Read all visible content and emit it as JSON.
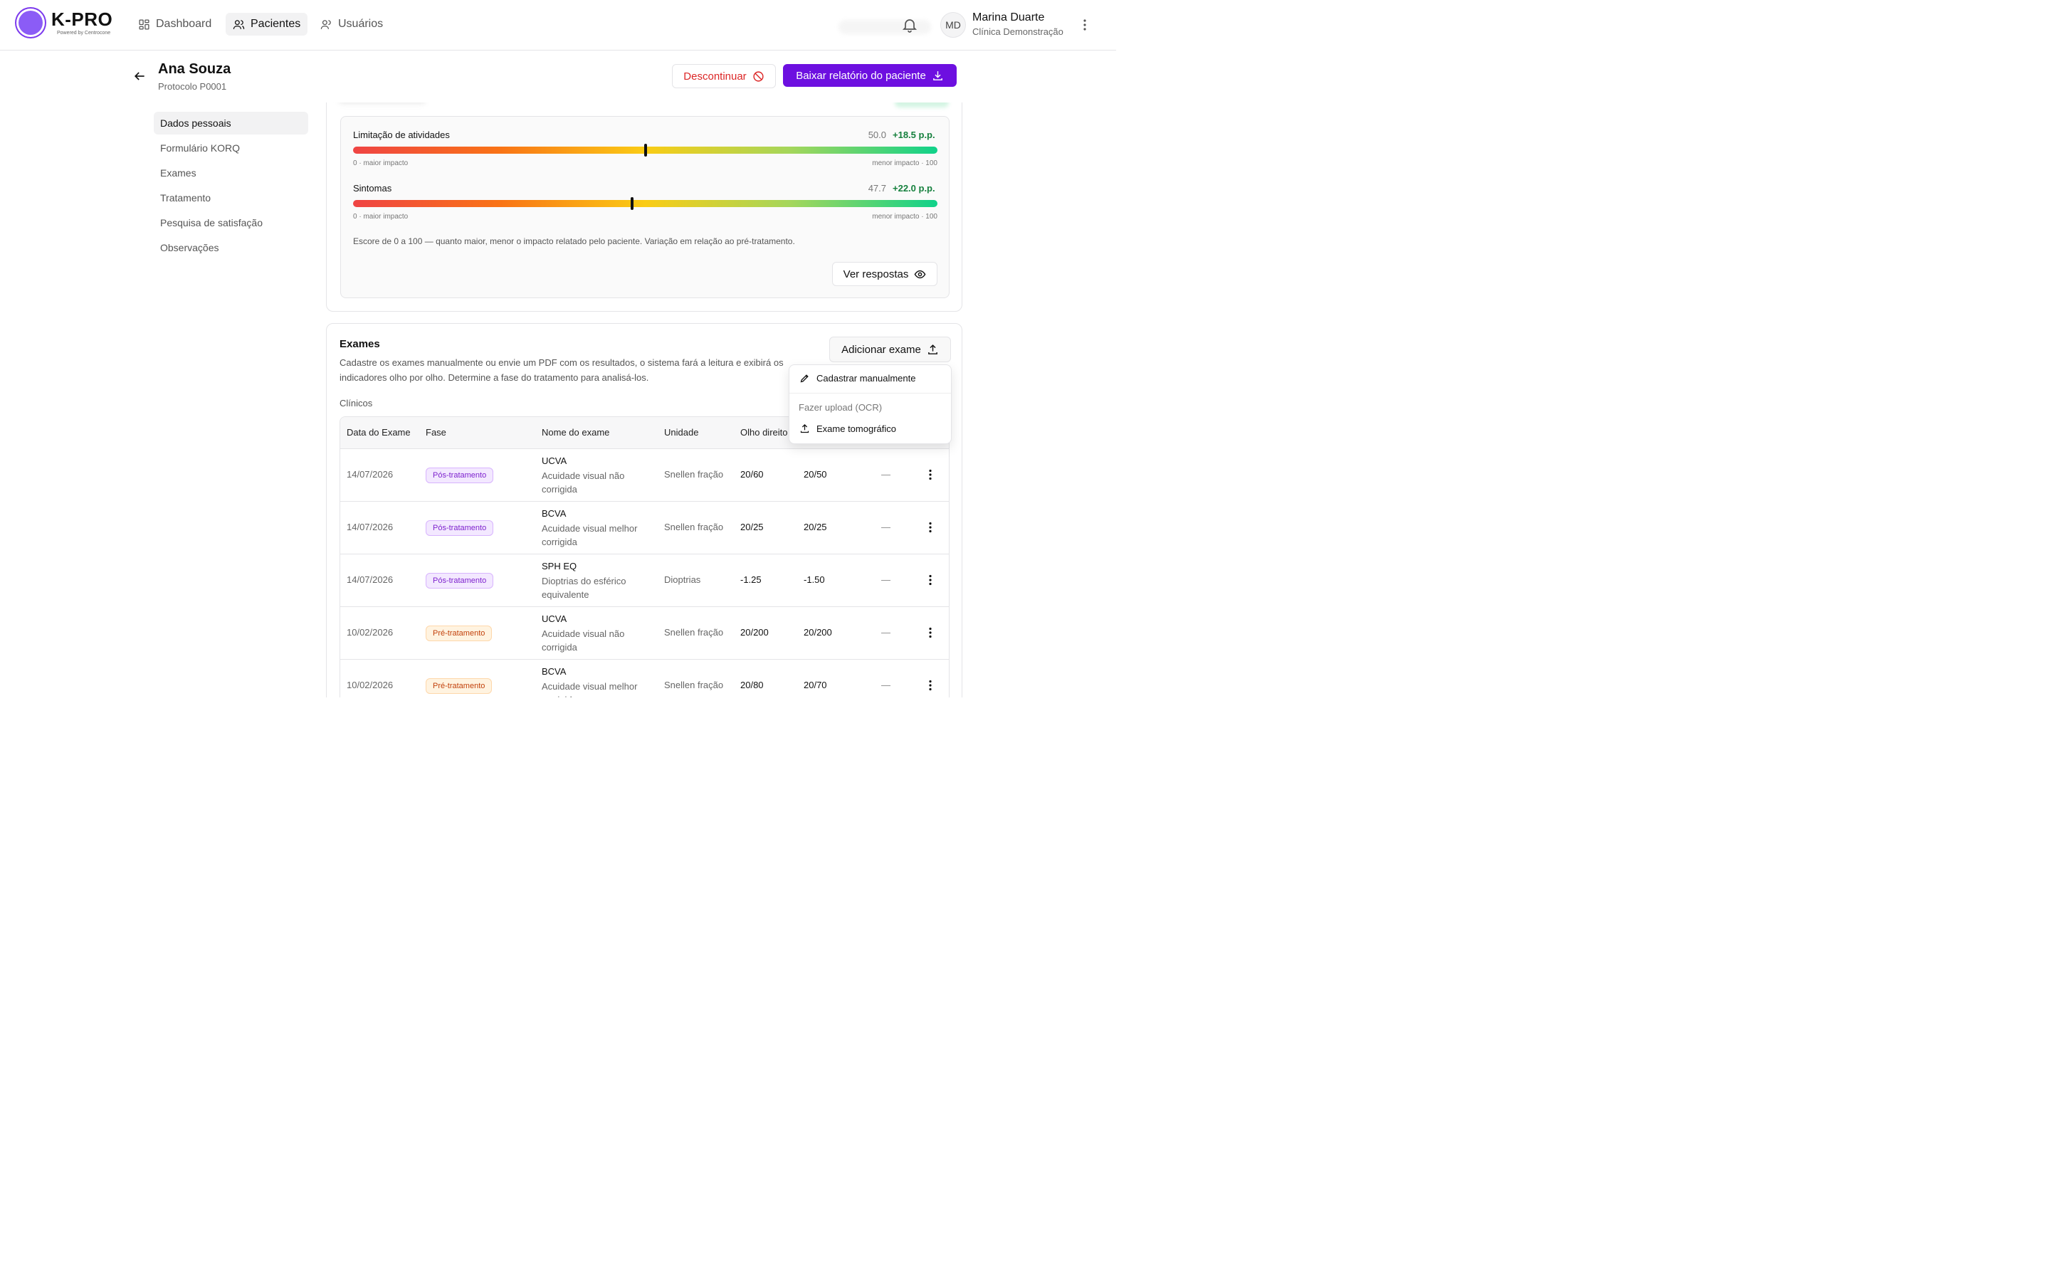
{
  "app": {
    "logo_text": "K-PRO",
    "logo_sub": "Powered by Centrocone"
  },
  "nav": {
    "items": [
      {
        "label": "Dashboard",
        "icon": "grid-icon",
        "active": false
      },
      {
        "label": "Pacientes",
        "icon": "users-icon",
        "active": true
      },
      {
        "label": "Usuários",
        "icon": "user-group-icon",
        "active": false
      }
    ]
  },
  "user": {
    "initials": "MD",
    "name": "Marina Duarte",
    "org": "Clínica Demonstração"
  },
  "patient": {
    "name": "Ana Souza",
    "protocol": "Protocolo P0001"
  },
  "actions": {
    "discontinue": "Descontinuar",
    "download_report": "Baixar relatório do paciente"
  },
  "sidenav": {
    "items": [
      {
        "label": "Dados pessoais",
        "active": true
      },
      {
        "label": "Formulário KORQ",
        "active": false
      },
      {
        "label": "Exames",
        "active": false
      },
      {
        "label": "Tratamento",
        "active": false
      },
      {
        "label": "Pesquisa de satisfação",
        "active": false
      },
      {
        "label": "Observações",
        "active": false
      }
    ]
  },
  "korq": {
    "metrics": [
      {
        "label": "Limitação de atividades",
        "value": "50.0",
        "delta": "+18.5 p.p.",
        "score": 50.0,
        "low": "0 · maior impacto",
        "high": "menor impacto · 100"
      },
      {
        "label": "Sintomas",
        "value": "47.7",
        "delta": "+22.0 p.p.",
        "score": 47.7,
        "low": "0 · maior impacto",
        "high": "menor impacto · 100"
      }
    ],
    "footnote": "Escore de 0 a 100 — quanto maior, menor o impacto relatado pelo paciente. Variação em relação ao pré-tratamento.",
    "view_answers": "Ver respostas"
  },
  "exams": {
    "title": "Exames",
    "description": "Cadastre os exames manualmente ou envie um PDF com os resultados, o sistema fará a leitura e exibirá os indicadores olho por olho. Determine a fase do tratamento para analisá-los.",
    "add_button": "Adicionar exame",
    "section": "Clínicos",
    "columns": [
      "Data do Exame",
      "Fase",
      "Nome do exame",
      "Unidade",
      "Olho direito"
    ],
    "rows": [
      {
        "date": "14/07/2026",
        "phase": "Pós-tratamento",
        "phase_kind": "post",
        "code": "UCVA",
        "name": "Acuidade visual não corrigida",
        "unit": "Snellen fração",
        "od": "20/60",
        "oe": "20/50",
        "extra": "—"
      },
      {
        "date": "14/07/2026",
        "phase": "Pós-tratamento",
        "phase_kind": "post",
        "code": "BCVA",
        "name": "Acuidade visual melhor corrigida",
        "unit": "Snellen fração",
        "od": "20/25",
        "oe": "20/25",
        "extra": "—"
      },
      {
        "date": "14/07/2026",
        "phase": "Pós-tratamento",
        "phase_kind": "post",
        "code": "SPH EQ",
        "name": "Dioptrias do esférico equivalente",
        "unit": "Dioptrias",
        "od": "-1.25",
        "oe": "-1.50",
        "extra": "—"
      },
      {
        "date": "10/02/2026",
        "phase": "Pré-tratamento",
        "phase_kind": "pre",
        "code": "UCVA",
        "name": "Acuidade visual não corrigida",
        "unit": "Snellen fração",
        "od": "20/200",
        "oe": "20/200",
        "extra": "—"
      },
      {
        "date": "10/02/2026",
        "phase": "Pré-tratamento",
        "phase_kind": "pre",
        "code": "BCVA",
        "name": "Acuidade visual melhor corrigida",
        "unit": "Snellen fração",
        "od": "20/80",
        "oe": "20/70",
        "extra": "—"
      }
    ]
  },
  "dropdown": {
    "manual": "Cadastrar manualmente",
    "upload_section": "Fazer upload (OCR)",
    "tomographic": "Exame tomográfico"
  },
  "colors": {
    "accent": "#6d0fe0",
    "danger": "#dc2626",
    "positive": "#15803d"
  }
}
